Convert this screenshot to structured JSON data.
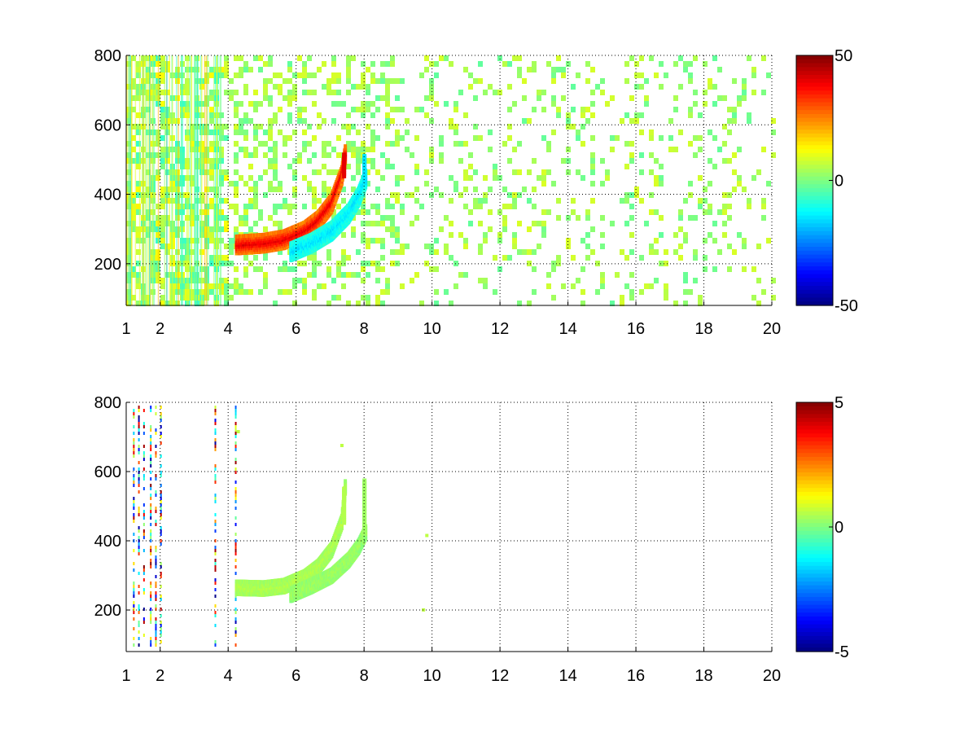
{
  "chart_data": [
    {
      "type": "heatmap",
      "title": "",
      "xlabel": "",
      "ylabel": "",
      "xlim": [
        1,
        20
      ],
      "ylim": [
        80,
        800
      ],
      "xticks": [
        1,
        2,
        4,
        6,
        8,
        10,
        12,
        14,
        16,
        18,
        20
      ],
      "xtick_labels": [
        "1",
        "2",
        "4",
        "6",
        "8",
        "10",
        "12",
        "14",
        "16",
        "18",
        "20"
      ],
      "yticks": [
        200,
        400,
        600,
        800
      ],
      "ytick_labels": [
        "200",
        "400",
        "600",
        "800"
      ],
      "grid": true,
      "colormap": "jet",
      "clim": [
        -50,
        50
      ],
      "colorbar_ticks": [
        -50,
        0,
        50
      ],
      "colorbar_labels": [
        "-50",
        "0",
        "50"
      ],
      "features": {
        "ridge": {
          "description_values": "curved band of positive values (~40) from x≈4.2,y≈260 rising to x≈7.3,y≈520",
          "points": [
            [
              4.2,
              260
            ],
            [
              5.0,
              265
            ],
            [
              5.6,
              275
            ],
            [
              6.2,
              300
            ],
            [
              6.6,
              330
            ],
            [
              7.0,
              380
            ],
            [
              7.3,
              460
            ],
            [
              7.4,
              520
            ]
          ],
          "value": 40
        },
        "shadow": {
          "points": [
            [
              5.8,
              240
            ],
            [
              6.4,
              265
            ],
            [
              7.0,
              300
            ],
            [
              7.5,
              350
            ],
            [
              7.8,
              400
            ],
            [
              8.0,
              450
            ],
            [
              8.0,
              520
            ]
          ],
          "value": -15
        },
        "noise_max_abs": 12
      }
    },
    {
      "type": "heatmap",
      "title": "",
      "xlabel": "",
      "ylabel": "",
      "xlim": [
        1,
        20
      ],
      "ylim": [
        80,
        800
      ],
      "xticks": [
        1,
        2,
        4,
        6,
        8,
        10,
        12,
        14,
        16,
        18,
        20
      ],
      "xtick_labels": [
        "1",
        "2",
        "4",
        "6",
        "8",
        "10",
        "12",
        "14",
        "16",
        "18",
        "20"
      ],
      "yticks": [
        200,
        400,
        600,
        800
      ],
      "ytick_labels": [
        "200",
        "400",
        "600",
        "800"
      ],
      "grid": true,
      "colormap": "jet",
      "clim": [
        -5,
        5
      ],
      "colorbar_ticks": [
        -5,
        0,
        5
      ],
      "colorbar_labels": [
        "-5",
        "0",
        "5"
      ],
      "features": {
        "ridge": {
          "points": [
            [
              4.2,
              270
            ],
            [
              5.0,
              268
            ],
            [
              5.6,
              275
            ],
            [
              6.2,
              300
            ],
            [
              6.6,
              330
            ],
            [
              7.0,
              380
            ],
            [
              7.3,
              460
            ],
            [
              7.4,
              560
            ]
          ],
          "value": 0.5
        },
        "shadow": {
          "points": [
            [
              5.8,
              250
            ],
            [
              6.4,
              275
            ],
            [
              7.0,
              305
            ],
            [
              7.5,
              350
            ],
            [
              7.8,
              390
            ],
            [
              8.0,
              430
            ],
            [
              8.0,
              580
            ]
          ],
          "value": 0.3
        },
        "streaks_x": [
          1.2,
          1.35,
          1.5,
          1.7,
          1.85,
          2.0,
          3.6,
          4.2
        ]
      }
    }
  ]
}
